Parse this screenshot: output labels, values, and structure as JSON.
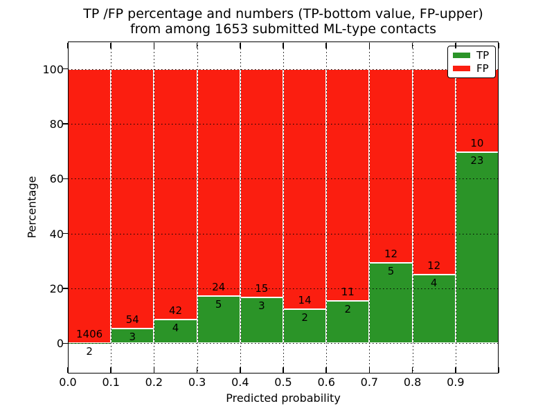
{
  "chart_data": {
    "type": "bar",
    "stacked": true,
    "normalized_to_percent": true,
    "title_line1": "TP /FP percentage and numbers (TP-bottom value, FP-upper)",
    "title_line2": "from among 1653 submitted ML-type contacts",
    "xlabel": "Predicted probability",
    "ylabel": "Percentage",
    "xlim": [
      0.0,
      1.0
    ],
    "ylim": [
      -11,
      110
    ],
    "x_tick_labels": [
      "0.0",
      "0.1",
      "0.2",
      "0.3",
      "0.4",
      "0.5",
      "0.6",
      "0.7",
      "0.8",
      "0.9"
    ],
    "y_tick_values": [
      0,
      20,
      40,
      60,
      80,
      100
    ],
    "bin_width": 0.1,
    "bin_starts": [
      0.0,
      0.1,
      0.2,
      0.3,
      0.4,
      0.5,
      0.6,
      0.7,
      0.8,
      0.9
    ],
    "series": [
      {
        "name": "TP",
        "color": "#2b9428",
        "values": [
          2,
          3,
          4,
          5,
          3,
          2,
          2,
          5,
          4,
          23
        ]
      },
      {
        "name": "FP",
        "color": "#fb1e10",
        "values": [
          1406,
          54,
          42,
          24,
          15,
          14,
          11,
          12,
          12,
          10
        ]
      }
    ],
    "tp_percent_of_bin": [
      0.1,
      5.3,
      8.7,
      17.2,
      16.7,
      12.5,
      15.4,
      29.4,
      25.0,
      69.7
    ],
    "total_contacts": 1653,
    "grid": {
      "style": "dotted",
      "color": "#000000"
    },
    "legend": {
      "position": "upper right",
      "entries": [
        {
          "label": "TP",
          "color": "#2b9428"
        },
        {
          "label": "FP",
          "color": "#fb1e10"
        }
      ]
    }
  },
  "colors": {
    "tp_green": "#2b9428",
    "fp_red": "#fb1e10",
    "bar_edge": "#ffffff",
    "background": "#ffffff",
    "text": "#000000"
  }
}
